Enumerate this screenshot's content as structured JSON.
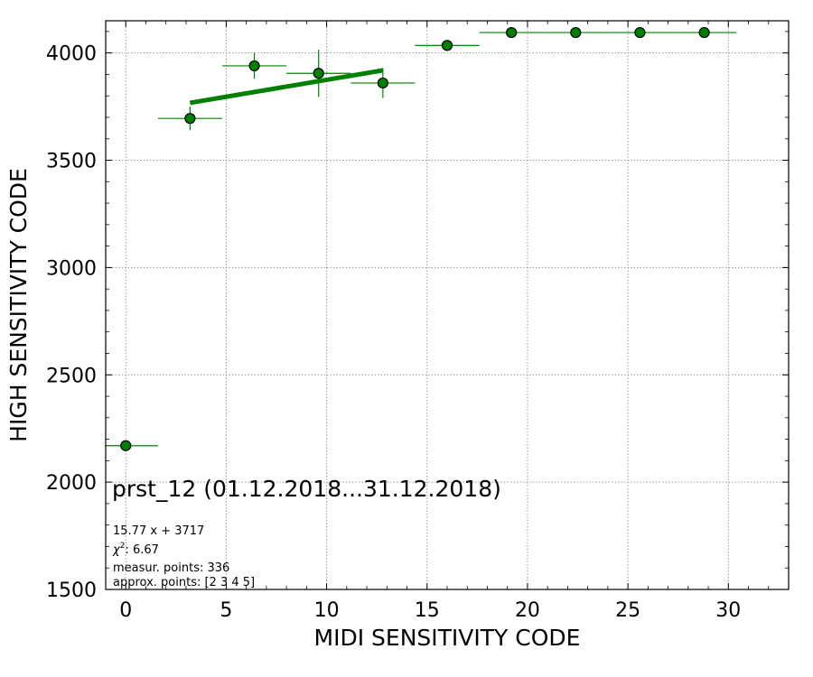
{
  "chart_data": {
    "type": "scatter",
    "xlabel": "MIDI SENSITIVITY CODE",
    "ylabel": "HIGH SENSITIVITY CODE",
    "xlim": [
      -1,
      33
    ],
    "ylim": [
      1500,
      4150
    ],
    "xticks": [
      0,
      5,
      10,
      15,
      20,
      25,
      30
    ],
    "yticks": [
      1500,
      2000,
      2500,
      3000,
      3500,
      4000
    ],
    "grid": true,
    "color": "#008000",
    "points": [
      {
        "x": 0.0,
        "y": 2170,
        "xerr": 1.6,
        "yerr": 0
      },
      {
        "x": 3.2,
        "y": 3695,
        "xerr": 1.6,
        "yerr": 55
      },
      {
        "x": 6.4,
        "y": 3940,
        "xerr": 1.6,
        "yerr": 60
      },
      {
        "x": 9.6,
        "y": 3905,
        "xerr": 1.6,
        "yerr": 110
      },
      {
        "x": 12.8,
        "y": 3860,
        "xerr": 1.6,
        "yerr": 70
      },
      {
        "x": 16.0,
        "y": 4035,
        "xerr": 1.6,
        "yerr": 25
      },
      {
        "x": 19.2,
        "y": 4095,
        "xerr": 1.6,
        "yerr": 0
      },
      {
        "x": 22.4,
        "y": 4095,
        "xerr": 1.6,
        "yerr": 0
      },
      {
        "x": 25.6,
        "y": 4095,
        "xerr": 1.6,
        "yerr": 0
      },
      {
        "x": 28.8,
        "y": 4095,
        "xerr": 1.6,
        "yerr": 0
      }
    ],
    "fit": {
      "slope": 15.77,
      "intercept": 3717,
      "x_range": [
        3.2,
        12.8
      ]
    },
    "annotations": {
      "title": "prst_12 (01.12.2018...31.12.2018)",
      "equation": "15.77 x + 3717",
      "chi2_symbol": "χ",
      "chi2_exp": "2",
      "chi2_rest": ": 6.67",
      "measured": "measur. points: 336",
      "approx": "approx. points: [2 3 4 5]"
    }
  }
}
